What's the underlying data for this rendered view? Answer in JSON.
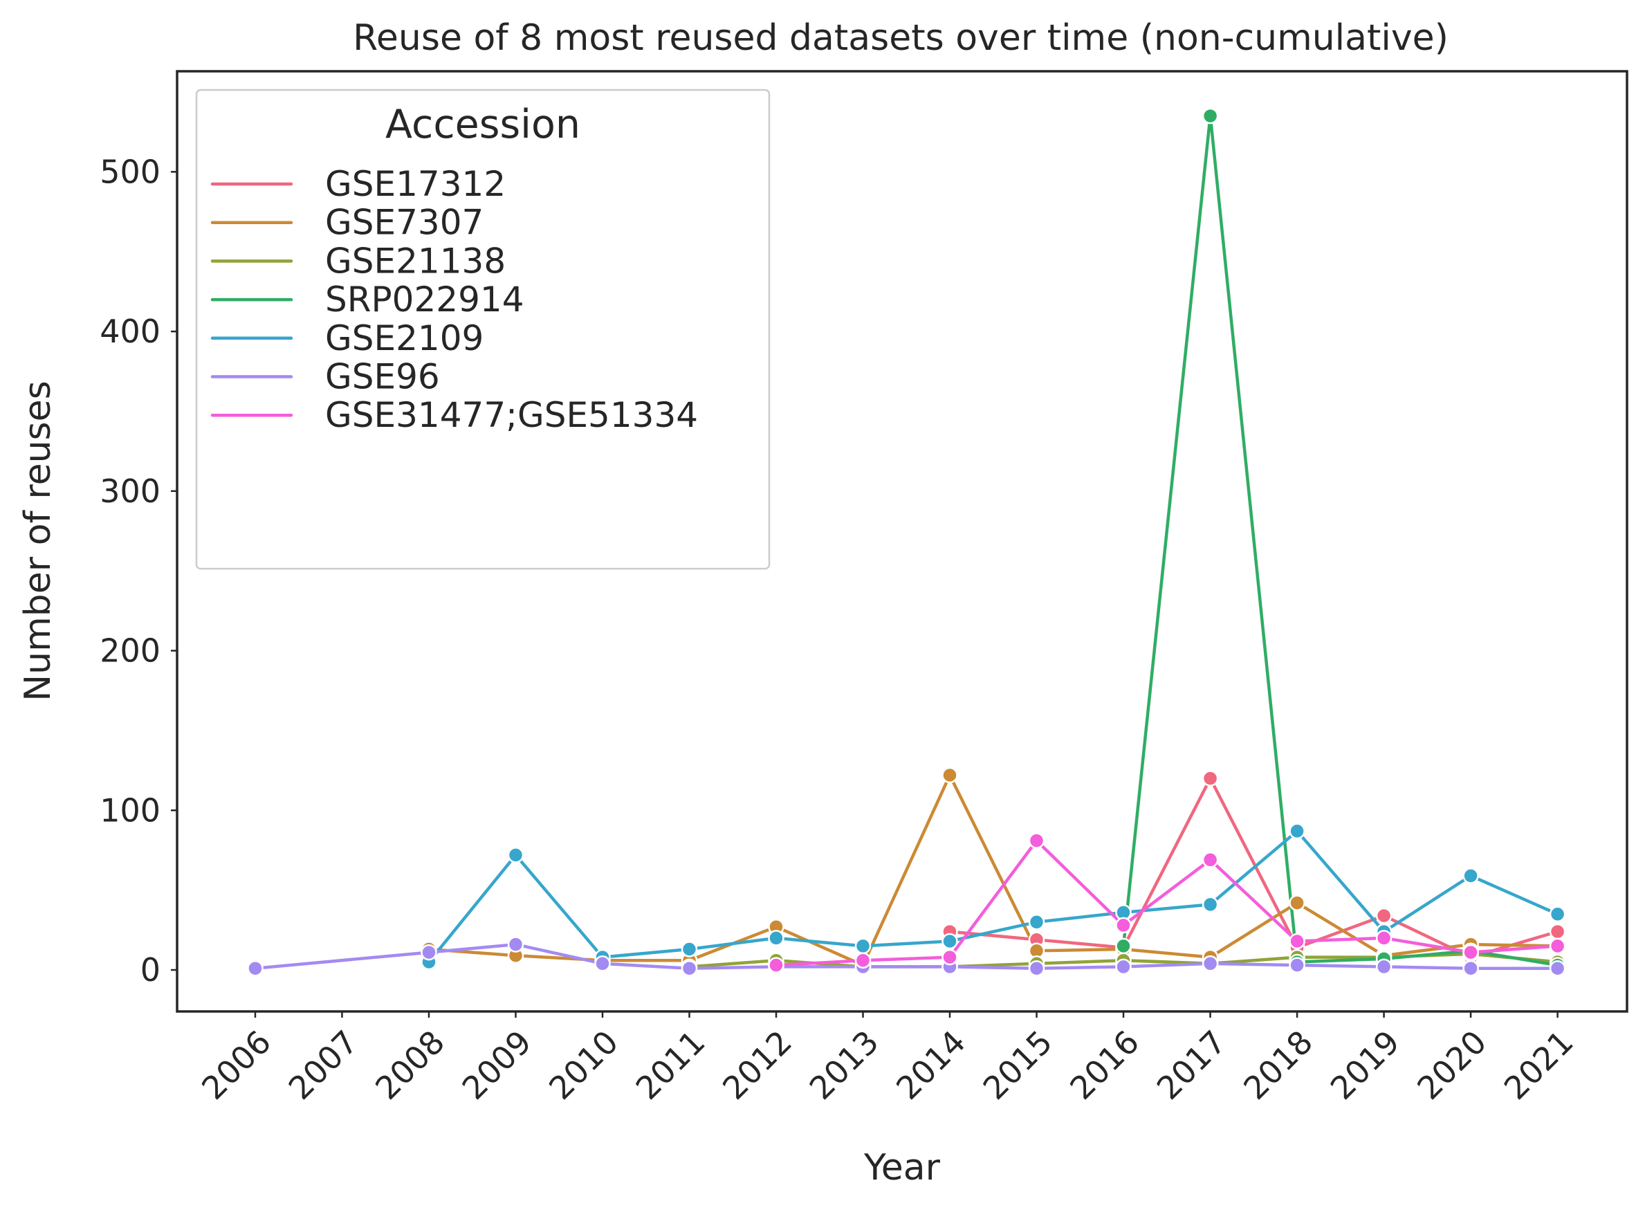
{
  "chart_data": {
    "type": "line",
    "title": "Reuse of 8 most reused datasets over time (non-cumulative)",
    "xlabel": "Year",
    "ylabel": "Number of reuses",
    "x": [
      2006,
      2007,
      2008,
      2009,
      2010,
      2011,
      2012,
      2013,
      2014,
      2015,
      2016,
      2017,
      2018,
      2019,
      2020,
      2021
    ],
    "x_tick_labels": [
      "2006",
      "2007",
      "2008",
      "2009",
      "2010",
      "2011",
      "2012",
      "2013",
      "2014",
      "2015",
      "2016",
      "2017",
      "2018",
      "2019",
      "2020",
      "2021"
    ],
    "y_ticks": [
      0,
      100,
      200,
      300,
      400,
      500
    ],
    "y_tick_labels": [
      "0",
      "100",
      "200",
      "300",
      "400",
      "500"
    ],
    "xlim": [
      2005.1,
      2021.8
    ],
    "ylim": [
      -26,
      563
    ],
    "grid": false,
    "legend": {
      "title": "Accession",
      "placement": "upper-left"
    },
    "series": [
      {
        "name": "GSE17312",
        "color": "#f0677f",
        "points": [
          [
            2014,
            24
          ],
          [
            2015,
            19
          ],
          [
            2016,
            14
          ],
          [
            2017,
            120
          ],
          [
            2018,
            14
          ],
          [
            2019,
            34
          ],
          [
            2020,
            8
          ],
          [
            2021,
            24
          ]
        ]
      },
      {
        "name": "GSE7307",
        "color": "#cc8a34",
        "points": [
          [
            2008,
            13
          ],
          [
            2009,
            9
          ],
          [
            2010,
            6
          ],
          [
            2011,
            6
          ],
          [
            2012,
            27
          ],
          [
            2013,
            3
          ],
          [
            2014,
            122
          ],
          [
            2015,
            12
          ],
          [
            2016,
            13
          ],
          [
            2017,
            8
          ],
          [
            2018,
            42
          ],
          [
            2019,
            9
          ],
          [
            2020,
            16
          ],
          [
            2021,
            15
          ]
        ]
      },
      {
        "name": "GSE21138",
        "color": "#8fa436",
        "points": [
          [
            2011,
            2
          ],
          [
            2012,
            6
          ],
          [
            2013,
            2
          ],
          [
            2014,
            2
          ],
          [
            2015,
            4
          ],
          [
            2016,
            6
          ],
          [
            2017,
            4
          ],
          [
            2018,
            8
          ],
          [
            2019,
            8
          ],
          [
            2020,
            10
          ],
          [
            2021,
            5
          ]
        ]
      },
      {
        "name": "SRP022914",
        "color": "#30ad65",
        "points": [
          [
            2016,
            15
          ],
          [
            2017,
            535
          ],
          [
            2018,
            5
          ],
          [
            2019,
            7
          ],
          [
            2020,
            12
          ],
          [
            2021,
            3
          ]
        ]
      },
      {
        "name": "GSE2109",
        "color": "#37a6cc",
        "points": [
          [
            2008,
            5
          ],
          [
            2009,
            72
          ],
          [
            2010,
            8
          ],
          [
            2011,
            13
          ],
          [
            2012,
            20
          ],
          [
            2013,
            15
          ],
          [
            2014,
            18
          ],
          [
            2015,
            30
          ],
          [
            2016,
            36
          ],
          [
            2017,
            41
          ],
          [
            2018,
            87
          ],
          [
            2019,
            24
          ],
          [
            2020,
            59
          ],
          [
            2021,
            35
          ]
        ]
      },
      {
        "name": "GSE96",
        "color": "#a38af2",
        "points": [
          [
            2006,
            1
          ],
          [
            2008,
            11
          ],
          [
            2009,
            16
          ],
          [
            2010,
            4
          ],
          [
            2011,
            1
          ],
          [
            2012,
            2
          ],
          [
            2013,
            2
          ],
          [
            2014,
            2
          ],
          [
            2015,
            1
          ],
          [
            2016,
            2
          ],
          [
            2017,
            4
          ],
          [
            2018,
            3
          ],
          [
            2019,
            2
          ],
          [
            2020,
            1
          ],
          [
            2021,
            1
          ]
        ]
      },
      {
        "name": "GSE31477;GSE51334",
        "color": "#f45ddb",
        "points": [
          [
            2012,
            3
          ],
          [
            2013,
            6
          ],
          [
            2014,
            8
          ],
          [
            2015,
            81
          ],
          [
            2016,
            28
          ],
          [
            2017,
            69
          ],
          [
            2018,
            18
          ],
          [
            2019,
            20
          ],
          [
            2020,
            11
          ],
          [
            2021,
            15
          ]
        ]
      }
    ]
  }
}
